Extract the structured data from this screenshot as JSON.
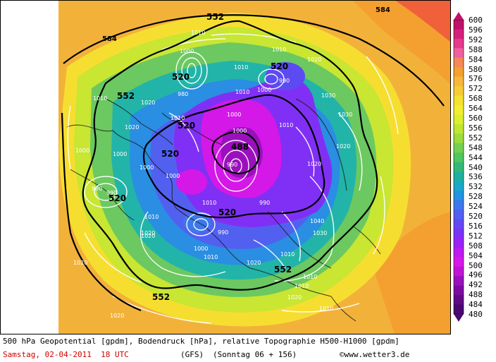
{
  "caption": {
    "line1": "500 hPa Geopotential [gpdm], Bodendruck [hPa], relative Topographie H500-H1000 [gpdm]",
    "valid": "Samstag, 02-04-2011  18 UTC",
    "model": "(GFS)",
    "run": "(Sonntag 06 + 156)",
    "credit": "©www.wetter3.de"
  },
  "legend": {
    "labels": [
      "600",
      "596",
      "592",
      "588",
      "584",
      "580",
      "576",
      "572",
      "568",
      "564",
      "560",
      "556",
      "552",
      "548",
      "544",
      "540",
      "536",
      "532",
      "528",
      "524",
      "520",
      "516",
      "512",
      "508",
      "504",
      "500",
      "496",
      "492",
      "488",
      "484",
      "480"
    ],
    "colors": [
      "#c0106a",
      "#d4207a",
      "#e63a8c",
      "#f0609e",
      "#f48858",
      "#f4a030",
      "#f6b83a",
      "#f6cc36",
      "#f6e030",
      "#f2ee32",
      "#dcee30",
      "#c0e632",
      "#9cdc3c",
      "#76d050",
      "#52c660",
      "#34b878",
      "#20b0a0",
      "#1aa8c8",
      "#2294e0",
      "#3c78ec",
      "#5260f0",
      "#6448f4",
      "#7a34f6",
      "#9a22f6",
      "#bc1af0",
      "#d818e8",
      "#c014d4",
      "#9a10bc",
      "#7c0ca0",
      "#600a86",
      "#4a0870"
    ],
    "icon_top": "triangle-up-icon",
    "icon_bottom": "triangle-down-icon"
  },
  "map": {
    "labels_552": [
      "552",
      "552",
      "552",
      "552",
      "552"
    ],
    "labels_584": [
      "584",
      "584"
    ],
    "labels_520": [
      "520",
      "520",
      "520",
      "520",
      "520",
      "520"
    ],
    "label_488": "488",
    "pressure_labels": [
      "1010",
      "1000",
      "1010",
      "1020",
      "1010",
      "1000",
      "990",
      "980",
      "1010",
      "1000",
      "990",
      "1000",
      "1010",
      "1020",
      "1030",
      "1020",
      "1010",
      "1000",
      "990",
      "1000",
      "1010",
      "1020",
      "1010",
      "1020",
      "1040",
      "1030",
      "1010",
      "1000",
      "990",
      "1010",
      "1020",
      "1020",
      "1010",
      "1020",
      "1010",
      "1030",
      "1000",
      "1010",
      "1020",
      "1000",
      "990",
      "1020",
      "1020",
      "990",
      "1010"
    ]
  }
}
